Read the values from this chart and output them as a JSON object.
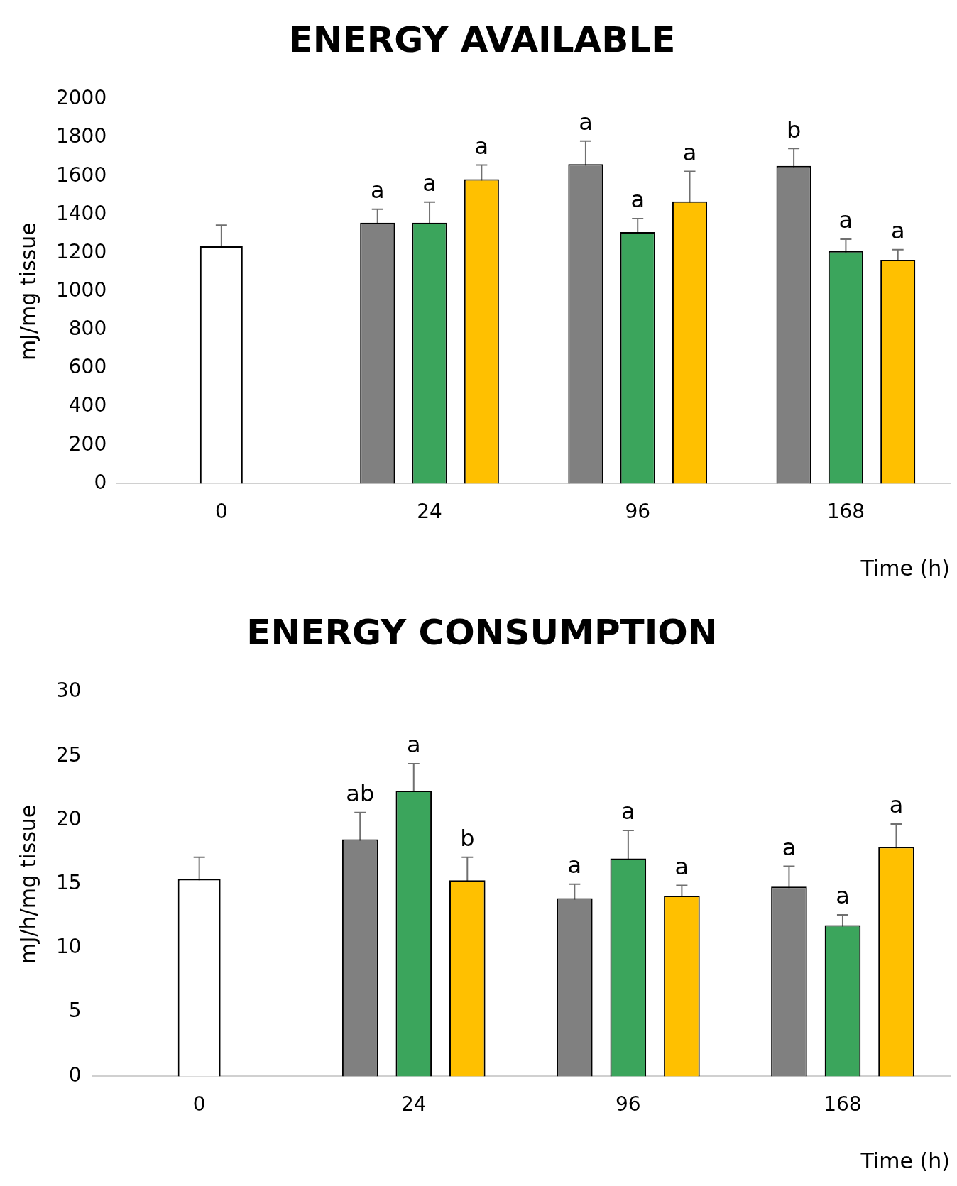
{
  "chart_data": [
    {
      "type": "bar",
      "title": "ENERGY AVAILABLE",
      "xlabel": "Time (h)",
      "ylabel": "mJ/mg tissue",
      "categories": [
        "0",
        "24",
        "96",
        "168"
      ],
      "ylim": [
        0,
        2000
      ],
      "yticks": [
        0,
        200,
        400,
        600,
        800,
        1000,
        1200,
        1400,
        1600,
        1800,
        2000
      ],
      "grid": false,
      "legend": false,
      "series": [
        {
          "color": "#ffffff",
          "values": [
            1235,
            null,
            null,
            null
          ],
          "errors": [
            110,
            null,
            null,
            null
          ]
        },
        {
          "color": "#808080",
          "values": [
            null,
            1358,
            1663,
            1654
          ],
          "errors": [
            null,
            70,
            120,
            90
          ],
          "value_labels": [
            null,
            "a",
            "a",
            "b"
          ]
        },
        {
          "color": "#3ba55c",
          "values": [
            null,
            1358,
            1309,
            1210
          ],
          "errors": [
            null,
            107,
            70,
            62
          ],
          "value_labels": [
            null,
            "a",
            "a",
            "a"
          ]
        },
        {
          "color": "#ffc000",
          "values": [
            null,
            1584,
            1469,
            1165
          ],
          "errors": [
            null,
            74,
            156,
            53
          ],
          "value_labels": [
            null,
            "a",
            "a",
            "a"
          ]
        }
      ]
    },
    {
      "type": "bar",
      "title": "ENERGY CONSUMPTION",
      "xlabel": "Time (h)",
      "ylabel": "mJ/h/mg tissue",
      "categories": [
        "0",
        "24",
        "96",
        "168"
      ],
      "ylim": [
        0,
        30
      ],
      "yticks": [
        0,
        5,
        10,
        15,
        20,
        25,
        30
      ],
      "grid": false,
      "legend": false,
      "series": [
        {
          "color": "#ffffff",
          "values": [
            15.4,
            null,
            null,
            null
          ],
          "errors": [
            1.7,
            null,
            null,
            null
          ]
        },
        {
          "color": "#808080",
          "values": [
            null,
            18.5,
            13.9,
            14.8
          ],
          "errors": [
            null,
            2.1,
            1.1,
            1.6
          ],
          "value_labels": [
            null,
            "ab",
            "a",
            "a"
          ]
        },
        {
          "color": "#3ba55c",
          "values": [
            null,
            22.3,
            17.0,
            11.8
          ],
          "errors": [
            null,
            2.1,
            2.2,
            0.8
          ],
          "value_labels": [
            null,
            "a",
            "a",
            "a"
          ]
        },
        {
          "color": "#ffc000",
          "values": [
            null,
            15.3,
            14.1,
            17.9
          ],
          "errors": [
            null,
            1.8,
            0.8,
            1.8
          ],
          "value_labels": [
            null,
            "b",
            "a",
            "a"
          ]
        }
      ]
    }
  ]
}
